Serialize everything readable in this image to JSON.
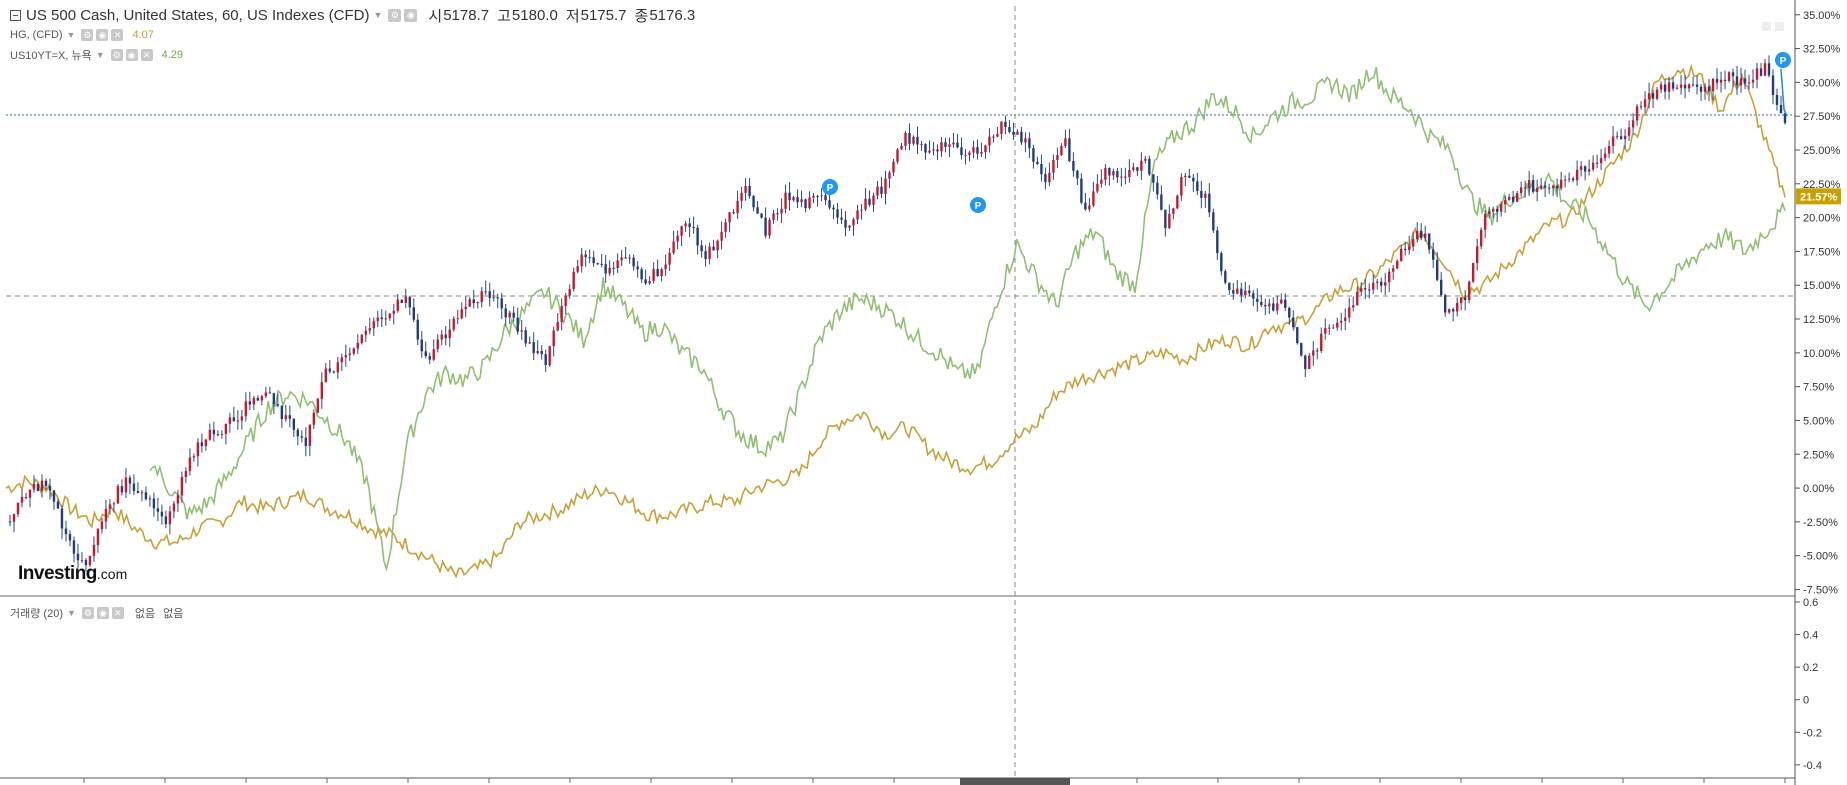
{
  "legend": {
    "main": {
      "title": "US 500 Cash, United States, 60, US Indexes (CFD)",
      "open_label": "시",
      "open_value": "5178.7",
      "high_label": "고",
      "high_value": "5180.0",
      "low_label": "저",
      "low_value": "5175.7",
      "close_label": "종",
      "close_value": "5176.3"
    },
    "hg": {
      "name": "HG, (CFD)",
      "value": "4.07"
    },
    "us10y": {
      "name": "US10YT=X, 뉴욕",
      "value": "4.29"
    }
  },
  "volume": {
    "name": "거래량 (20)",
    "value1": "없음",
    "value2": "없음"
  },
  "logo": {
    "main": "Investing",
    "suffix": ".com"
  },
  "colors": {
    "sp500_up": "#c51a2c",
    "sp500_down": "#1d3e7a",
    "sp500_wick": "#2c4680",
    "sp500_line": "#1e88e5",
    "hg": "#c8a03a",
    "us10y": "#8fbf72",
    "label_bg": "#c8a000",
    "marker": "#2196f3",
    "hline": "#3d5ae0"
  },
  "icons": [
    "collapse-icon",
    "settings-icon",
    "visibility-icon",
    "close-icon",
    "dropdown-caret-icon"
  ],
  "chart_data": {
    "type": "line",
    "y_axis_unit": "%",
    "ylim": [
      -8.5,
      35.5
    ],
    "y_ticks": [
      "35.00%",
      "32.50%",
      "30.00%",
      "27.50%",
      "25.00%",
      "22.50%",
      "20.00%",
      "17.50%",
      "15.00%",
      "12.50%",
      "10.00%",
      "7.50%",
      "5.00%",
      "2.50%",
      "0.00%",
      "-2.50%",
      "-5.00%",
      "-7.50%"
    ],
    "last_value_label": "21.57%",
    "series": [
      {
        "name": "US 500 Cash",
        "values": [
          -2.5,
          -0.3,
          0.5,
          -3.5,
          -6,
          -1.5,
          0.5,
          -0.5,
          -2.5,
          1.5,
          4,
          4.5,
          6,
          7,
          5,
          3.5,
          8.5,
          9.5,
          11.5,
          13,
          14,
          9.5,
          11.5,
          13.5,
          14.5,
          13,
          11,
          9.5,
          14.5,
          17.5,
          16,
          17,
          15.5,
          16.5,
          20,
          17,
          19.5,
          22,
          19,
          21.5,
          21,
          21.5,
          19.5,
          21,
          22.5,
          26,
          25,
          25.5,
          24.5,
          25.5,
          27,
          25.5,
          23,
          25.5,
          20.5,
          23.5,
          23,
          24,
          19.5,
          23.5,
          21.5,
          15,
          14.5,
          13.5,
          13.5,
          9,
          11.5,
          13,
          15,
          15.5,
          18,
          19,
          13,
          14,
          20,
          21,
          22.5,
          22,
          23,
          23.5,
          25,
          26.5,
          29,
          29.5,
          30,
          29.5,
          30.5,
          30,
          31,
          27
        ]
      },
      {
        "name": "HG",
        "values": [
          0,
          0.5,
          0,
          -1.5,
          -2.5,
          -1.5,
          -3,
          -4,
          -4,
          -3,
          -2.5,
          -1,
          -1.5,
          -1,
          -0.5,
          -1.5,
          -2,
          -3,
          -3.5,
          -4.5,
          -5.5,
          -6.5,
          -6,
          -5,
          -2.5,
          -2,
          -1.5,
          -0.5,
          0,
          -1,
          -2,
          -2,
          -1.5,
          -1,
          -1,
          0,
          0.5,
          1,
          3.5,
          5,
          5.5,
          4,
          4.5,
          3,
          2,
          1.5,
          2,
          3.5,
          4.5,
          7,
          8,
          8.5,
          9,
          9.5,
          10,
          9.5,
          10.5,
          11,
          10.5,
          12,
          12,
          13,
          14.5,
          15,
          16,
          17.5,
          19,
          17,
          14.5,
          15,
          16.5,
          18,
          19.5,
          20,
          22,
          24,
          26,
          30,
          31,
          30.5,
          28,
          30.5,
          26,
          21.5
        ]
      },
      {
        "name": "US10YT=X",
        "values": [
          2,
          0,
          -2,
          -1,
          1,
          3.5,
          6,
          7,
          6.5,
          5,
          3.5,
          0.5,
          -6,
          3,
          7,
          8.5,
          8,
          9,
          11.5,
          13,
          14.5,
          13,
          11,
          15,
          13.5,
          11.5,
          12,
          10,
          9,
          6,
          4,
          3,
          3.5,
          7,
          11,
          13,
          14,
          13.5,
          12.5,
          11,
          10,
          8.5,
          8.5,
          14,
          18,
          15.5,
          13.5,
          17.5,
          19,
          16,
          15,
          24,
          26,
          27,
          29,
          28,
          26,
          27.5,
          28.5,
          29,
          30,
          29,
          31,
          29,
          28,
          26,
          25,
          21.5,
          20,
          21.5,
          22,
          23,
          21,
          20,
          17.5,
          15,
          13.5,
          15,
          16.5,
          18,
          18.5,
          17.5,
          19,
          20.5
        ]
      }
    ],
    "volume_pane": {
      "ylim": [
        -0.45,
        0.6
      ],
      "y_ticks": [
        "0.6",
        "0.4",
        "0.2",
        "0",
        "-0.2",
        "-0.4"
      ],
      "values": []
    }
  }
}
